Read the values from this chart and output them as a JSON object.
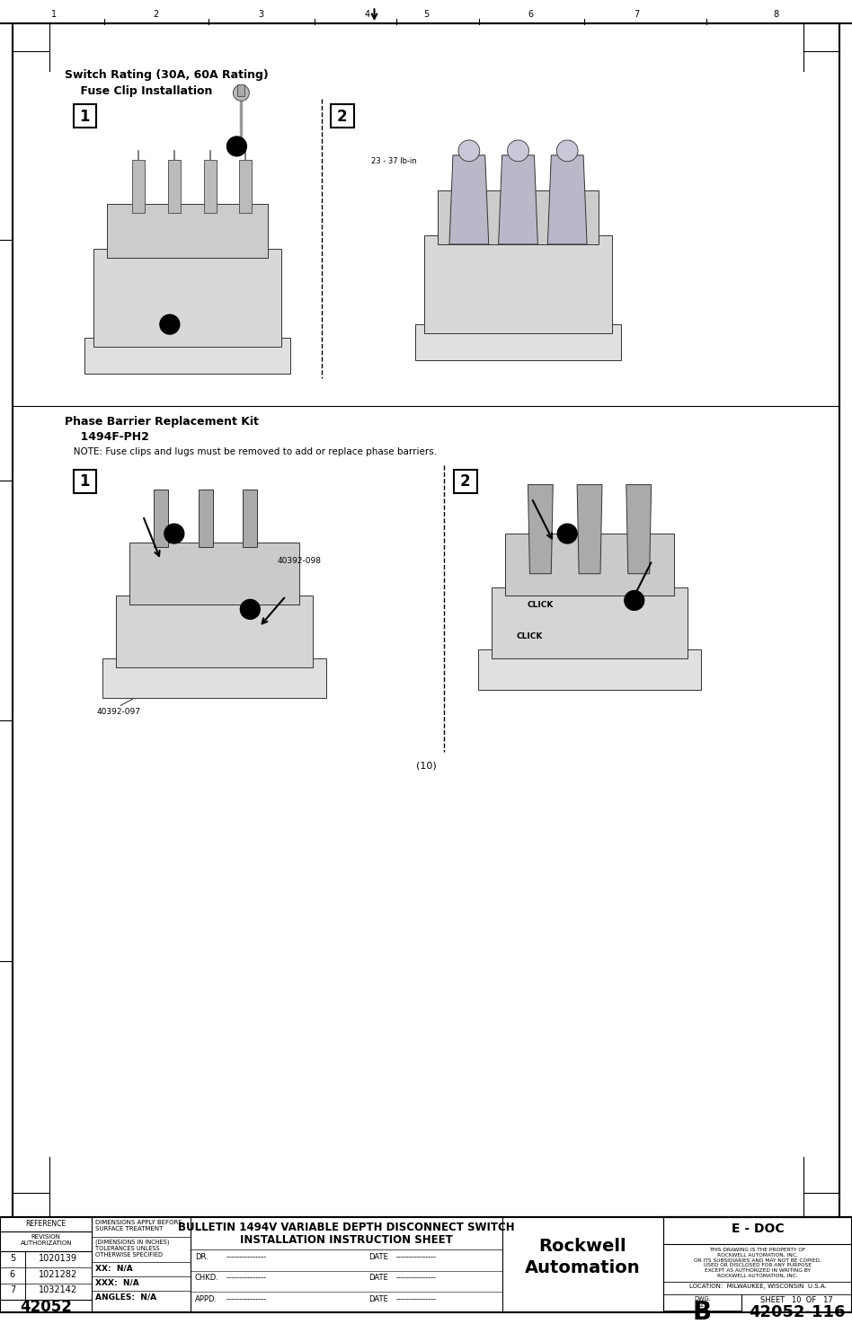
{
  "page_width": 9.54,
  "page_height": 14.75,
  "background_color": "#ffffff",
  "title_section1": "Switch Rating (30A, 60A Rating)",
  "subtitle_section1": "    Fuse Clip Installation",
  "title_section2": "Phase Barrier Replacement Kit",
  "subtitle_section2": "    1494F-PH2",
  "note_text": "   NOTE: Fuse clips and lugs must be removed to add or replace phase barriers.",
  "torque_label": "23 - 37 lb-in",
  "label_40392_097": "40392-097",
  "label_40392_098": "40392-098",
  "page_number": "(10)",
  "footer_reference": "REFERENCE",
  "footer_revision": "REVISION\nAUTHORIZATION",
  "footer_dim_text": "DIMENSIONS APPLY BEFORE\nSURFACE TREATMENT",
  "footer_dim_inches": "(DIMENSIONS IN INCHES)\nTOLERANCES UNLESS\nOTHERWISE SPECIFIED",
  "footer_xx": "XX:  N/A",
  "footer_xxx": "XXX:  N/A",
  "footer_angles": "ANGLES:  N/A",
  "footer_rev5": "5",
  "footer_num5": "1020139",
  "footer_rev6": "6",
  "footer_num6": "1021282",
  "footer_rev7": "7",
  "footer_num7": "1032142",
  "footer_42052": "42052",
  "footer_bulletin_line1": "BULLETIN 1494V VARIABLE DEPTH DISCONNECT SWITCH",
  "footer_bulletin_line2": "INSTALLATION INSTRUCTION SHEET",
  "footer_edoc": "E - DOC",
  "footer_property": "THIS DRAWING IS THE PROPERTY OF\nROCKWELL AUTOMATION, INC.\nOR ITS SUBSIDIARIES AND MAY NOT BE COPIED,\nUSED OR DISCLOSED FOR ANY PURPOSE\nEXCEPT AS AUTHORIZED IN WRITING BY\nROCKWELL AUTOMATION, INC.",
  "footer_location": "LOCATION:  MILWAUKEE, WISCONSIN  U.S.A.",
  "footer_sheet": "SHEET   10  OF   17",
  "footer_size_b": "B",
  "footer_drawing_num": "42052-116",
  "footer_dr": "DR.",
  "footer_chkd": "CHKD.",
  "footer_appd": "APPD.",
  "footer_date": "DATE",
  "footer_dashes": "---------------"
}
